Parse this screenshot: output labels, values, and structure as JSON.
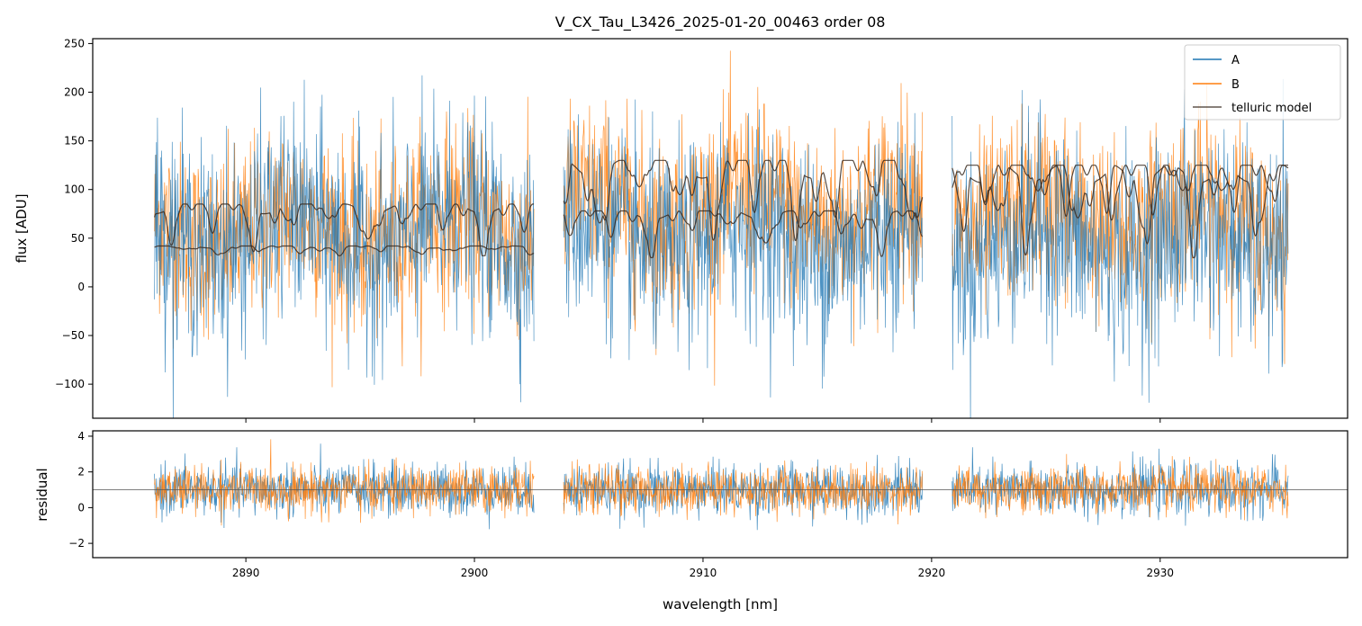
{
  "chart_data": {
    "title": "V_CX_Tau_L3426_2025-01-20_00463  order 08",
    "panels": [
      {
        "name": "flux",
        "type": "line",
        "ylabel": "flux [ADU]",
        "ylim": [
          -135,
          255
        ],
        "yticks": [
          -100,
          -50,
          0,
          50,
          100,
          150,
          200,
          250
        ],
        "ytick_labels": [
          "−100",
          "−50",
          "0",
          "50",
          "100",
          "150",
          "200",
          "250"
        ],
        "legend": {
          "position": "top-right",
          "entries": [
            {
              "label": "A",
              "color": "#1f77b4"
            },
            {
              "label": "B",
              "color": "#ff7f0e"
            },
            {
              "label": "telluric model",
              "color": "#3a2a20"
            }
          ]
        },
        "series": [
          {
            "name": "A",
            "color": "#1f77b4",
            "segments": [
              [
                2886.0,
                2902.6
              ],
              [
                2903.9,
                2919.6
              ],
              [
                2920.9,
                2935.6
              ]
            ],
            "baseline": [
              55,
              50,
              45
            ],
            "noise_amplitude": 95
          },
          {
            "name": "B",
            "color": "#ff7f0e",
            "segments": [
              [
                2886.0,
                2902.6
              ],
              [
                2903.9,
                2919.6
              ],
              [
                2920.9,
                2935.6
              ]
            ],
            "baseline": [
              60,
              80,
              70
            ],
            "noise_amplitude": 85
          },
          {
            "name": "telluric model A",
            "color": "#3a2a20",
            "segments": [
              [
                2886.0,
                2902.6
              ],
              [
                2903.9,
                2919.6
              ],
              [
                2920.9,
                2935.6
              ]
            ],
            "continuum": [
              42,
              78,
              125
            ],
            "floor": 30
          },
          {
            "name": "telluric model B",
            "color": "#3a2a20",
            "segments": [
              [
                2886.0,
                2902.6
              ],
              [
                2903.9,
                2919.6
              ],
              [
                2920.9,
                2935.6
              ]
            ],
            "continuum": [
              85,
              130,
              125
            ],
            "floor": 32
          }
        ]
      },
      {
        "name": "residual",
        "type": "line",
        "ylabel": "residual",
        "ylim": [
          -2.8,
          4.3
        ],
        "yticks": [
          -2,
          0,
          2,
          4
        ],
        "ytick_labels": [
          "−2",
          "0",
          "2",
          "4"
        ],
        "hline": 1.0,
        "series": [
          {
            "name": "A",
            "color": "#1f77b4",
            "center": 1.0,
            "noise_amplitude": 1.2
          },
          {
            "name": "B",
            "color": "#ff7f0e",
            "center": 1.0,
            "noise_amplitude": 1.1
          }
        ]
      }
    ],
    "x": {
      "label": "wavelength [nm]",
      "xlim": [
        2883.3,
        2938.2
      ],
      "ticks": [
        2890,
        2900,
        2910,
        2920,
        2930
      ],
      "tick_labels": [
        "2890",
        "2900",
        "2910",
        "2920",
        "2930"
      ]
    }
  }
}
